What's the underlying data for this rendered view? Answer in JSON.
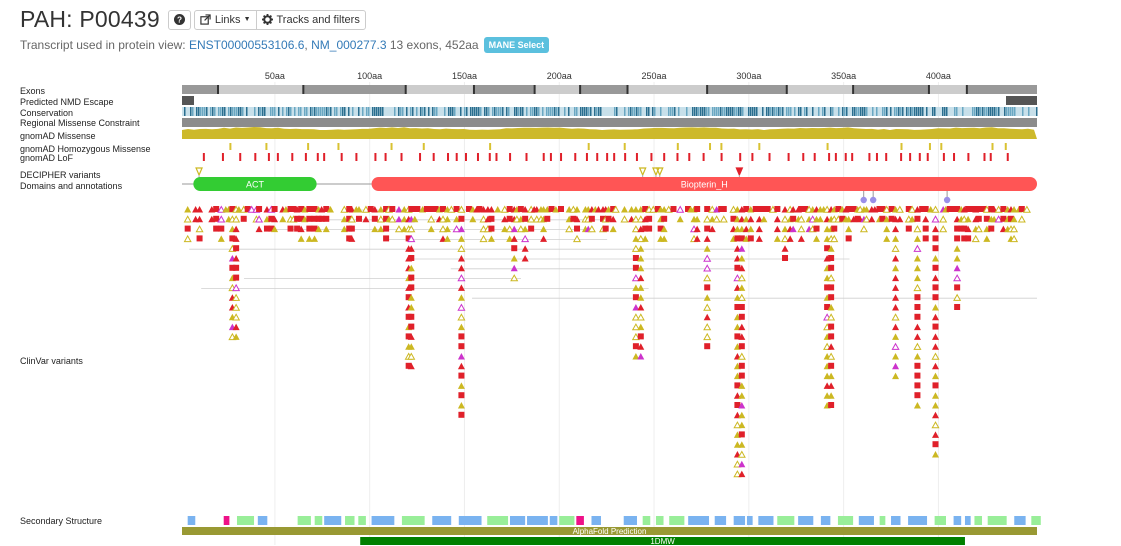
{
  "header": {
    "title": "PAH: P00439",
    "help_icon": "question-circle-icon",
    "links_label": "Links",
    "tracks_label": "Tracks and filters"
  },
  "transcript": {
    "prefix": "Transcript used in protein view:",
    "ensembl_id": "ENST00000553106.6",
    "separator": ",",
    "refseq_id": "NM_000277.3",
    "summary": "13 exons, 452aa",
    "badge": "MANE Select"
  },
  "axis": {
    "ticks": [
      "50aa",
      "100aa",
      "150aa",
      "200aa",
      "250aa",
      "300aa",
      "350aa",
      "400aa"
    ],
    "tick_positions_aa": [
      50,
      100,
      150,
      200,
      250,
      300,
      350,
      400
    ],
    "protein_length": 452
  },
  "track_labels": {
    "exons": "Exons",
    "nmd": "Predicted NMD Escape",
    "conservation": "Conservation",
    "rmc": "Regional Missense Constraint",
    "gnomad_missense": "gnomAD Missense",
    "gnomad_hom": "gnomAD Homozygous Missense",
    "gnomad_lof": "gnomAD LoF",
    "decipher": "DECIPHER variants",
    "domains": "Domains and annotations",
    "clinvar": "ClinVar variants",
    "secondary": "Secondary Structure"
  },
  "domains": [
    {
      "name": "ACT",
      "start": 7,
      "end": 72,
      "color": "#33cc33"
    },
    {
      "name": "Biopterin_H",
      "start": 101,
      "end": 452,
      "color": "#ff5555"
    }
  ],
  "structures": [
    {
      "name": "AlphaFold Prediction",
      "start": 1,
      "end": 452,
      "color": "#999933"
    },
    {
      "name": "1DMW",
      "start": 95,
      "end": 414,
      "color": "#008000"
    }
  ],
  "colors": {
    "pathogenic": "#e0202a",
    "uncertain": "#ccb822",
    "conflicting": "#cc33cc",
    "exon_dark": "#999999",
    "exon_light": "#cccccc",
    "helix": "#7ab3f0",
    "strand": "#99ee99",
    "turn": "#ee1188"
  }
}
